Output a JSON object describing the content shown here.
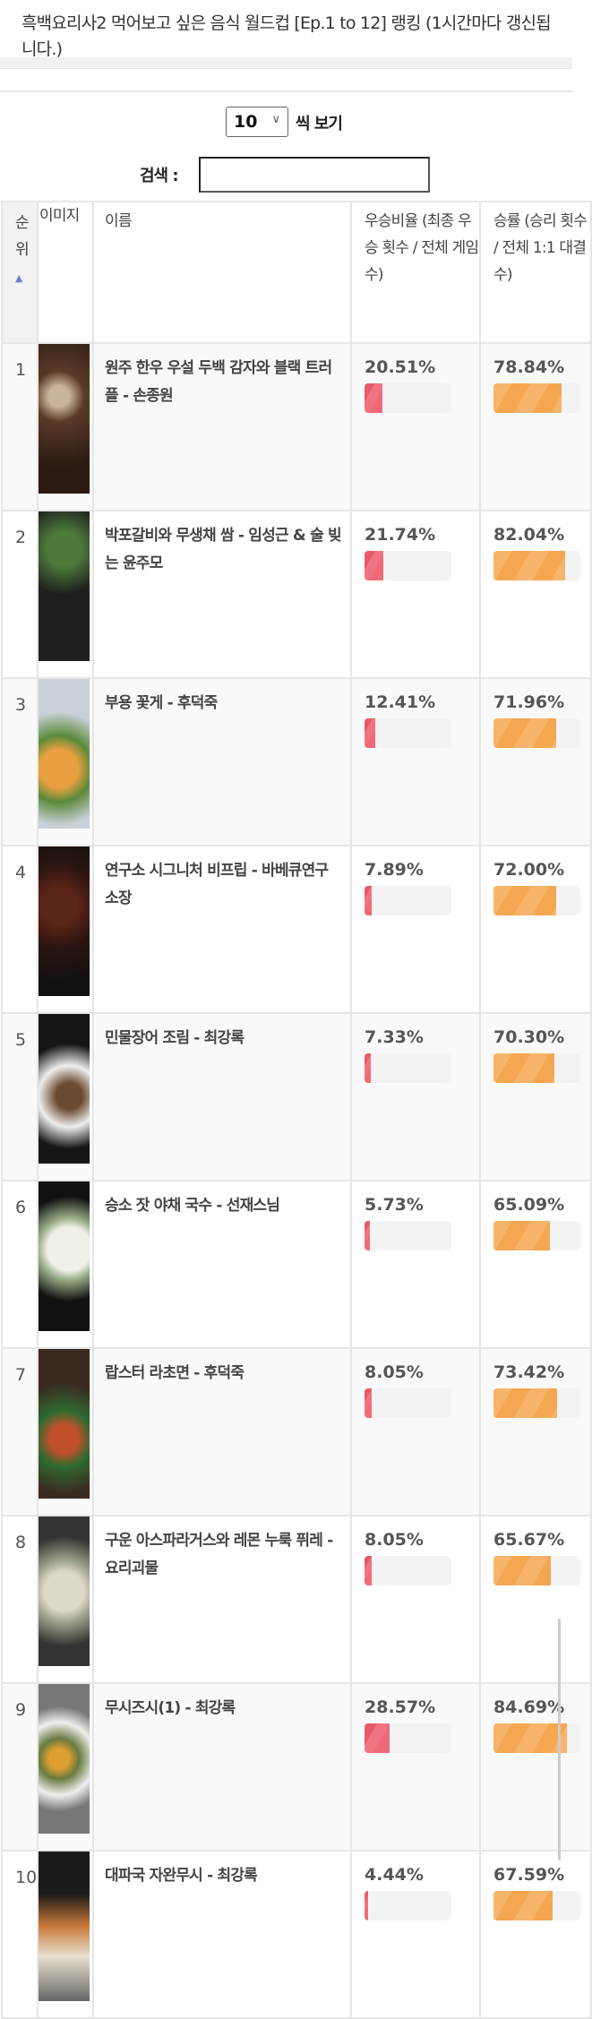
{
  "page": {
    "title": "흑백요리사2 먹어보고 싶은 음식 월드컵 [Ep.1 to 12] 랭킹 (1시간마다 갱신됩니다.)"
  },
  "controls": {
    "page_size": "10",
    "page_size_suffix": "씩 보기",
    "search_label": "검색 :",
    "search_value": ""
  },
  "table": {
    "headers": {
      "rank": "순위",
      "image": "이미지",
      "name": "이름",
      "win_ratio": "우승비율 (최종 우승 횟수 / 전체 게임수)",
      "win_rate": "승률 (승리 횟수 / 전체 1:1 대결수)"
    },
    "sort": {
      "column": "rank",
      "direction": "ascending"
    },
    "rows": [
      {
        "rank": "1",
        "name": "원주 한우 우설 두백 감자와 블랙 트러플 - 손종원",
        "win_ratio": "20.51%",
        "win_rate": "78.84%",
        "win_ratio_value": 20.51,
        "win_rate_value": 78.84
      },
      {
        "rank": "2",
        "name": "박포갈비와 무생채 쌈 - 임성근 & 술 빚는 윤주모",
        "win_ratio": "21.74%",
        "win_rate": "82.04%",
        "win_ratio_value": 21.74,
        "win_rate_value": 82.04
      },
      {
        "rank": "3",
        "name": "부용 꽃게 - 후덕죽",
        "win_ratio": "12.41%",
        "win_rate": "71.96%",
        "win_ratio_value": 12.41,
        "win_rate_value": 71.96
      },
      {
        "rank": "4",
        "name": "연구소 시그니처 비프립 - 바베큐연구소장",
        "win_ratio": "7.89%",
        "win_rate": "72.00%",
        "win_ratio_value": 7.89,
        "win_rate_value": 72.0
      },
      {
        "rank": "5",
        "name": "민물장어 조림 - 최강록",
        "win_ratio": "7.33%",
        "win_rate": "70.30%",
        "win_ratio_value": 7.33,
        "win_rate_value": 70.3
      },
      {
        "rank": "6",
        "name": "승소 잣 야채 국수 - 선재스님",
        "win_ratio": "5.73%",
        "win_rate": "65.09%",
        "win_ratio_value": 5.73,
        "win_rate_value": 65.09
      },
      {
        "rank": "7",
        "name": "랍스터 라초면 - 후덕죽",
        "win_ratio": "8.05%",
        "win_rate": "73.42%",
        "win_ratio_value": 8.05,
        "win_rate_value": 73.42
      },
      {
        "rank": "8",
        "name": "구운 아스파라거스와 레몬 누룩 퓌레 - 요리괴물",
        "win_ratio": "8.05%",
        "win_rate": "65.67%",
        "win_ratio_value": 8.05,
        "win_rate_value": 65.67
      },
      {
        "rank": "9",
        "name": "무시즈시(1) - 최강록",
        "win_ratio": "28.57%",
        "win_rate": "84.69%",
        "win_ratio_value": 28.57,
        "win_rate_value": 84.69
      },
      {
        "rank": "10",
        "name": "대파국 자완무시 - 최강록",
        "win_ratio": "4.44%",
        "win_rate": "67.59%",
        "win_ratio_value": 4.44,
        "win_rate_value": 67.59
      }
    ]
  },
  "colors": {
    "win_ratio_bar": "#ef6a79",
    "win_rate_bar": "#f5a650",
    "sort_arrow": "#7a7ad8"
  }
}
